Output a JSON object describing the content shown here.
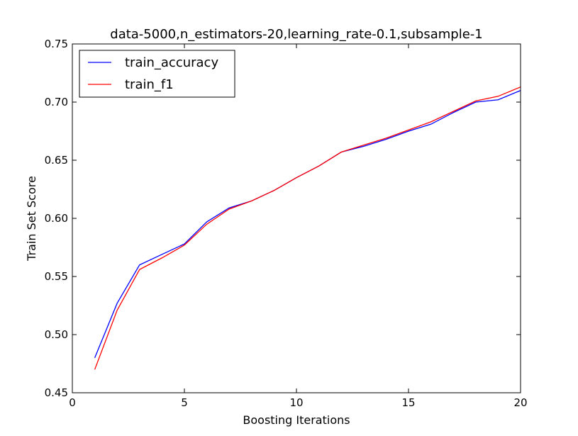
{
  "chart_data": {
    "type": "line",
    "title": "data-5000,n_estimators-20,learning_rate-0.1,subsample-1",
    "xlabel": "Boosting Iterations",
    "ylabel": "Train Set Score",
    "xlim": [
      0,
      20
    ],
    "ylim": [
      0.45,
      0.75
    ],
    "xticks": [
      0,
      5,
      10,
      15,
      20
    ],
    "yticks": [
      0.45,
      0.5,
      0.55,
      0.6,
      0.65,
      0.7,
      0.75
    ],
    "x": [
      1,
      2,
      3,
      4,
      5,
      6,
      7,
      8,
      9,
      10,
      11,
      12,
      13,
      14,
      15,
      16,
      17,
      18,
      19,
      20
    ],
    "grid": false,
    "legend_position": "upper-left",
    "series": [
      {
        "name": "train_accuracy",
        "color": "#0000ff",
        "values": [
          0.48,
          0.527,
          0.56,
          0.569,
          0.578,
          0.597,
          0.609,
          0.615,
          0.624,
          0.635,
          0.645,
          0.657,
          0.662,
          0.668,
          0.675,
          0.681,
          0.691,
          0.7,
          0.702,
          0.71
        ]
      },
      {
        "name": "train_f1",
        "color": "#ff0000",
        "values": [
          0.47,
          0.521,
          0.556,
          0.566,
          0.577,
          0.595,
          0.608,
          0.615,
          0.624,
          0.635,
          0.645,
          0.657,
          0.663,
          0.669,
          0.676,
          0.683,
          0.692,
          0.701,
          0.705,
          0.713
        ]
      }
    ]
  }
}
